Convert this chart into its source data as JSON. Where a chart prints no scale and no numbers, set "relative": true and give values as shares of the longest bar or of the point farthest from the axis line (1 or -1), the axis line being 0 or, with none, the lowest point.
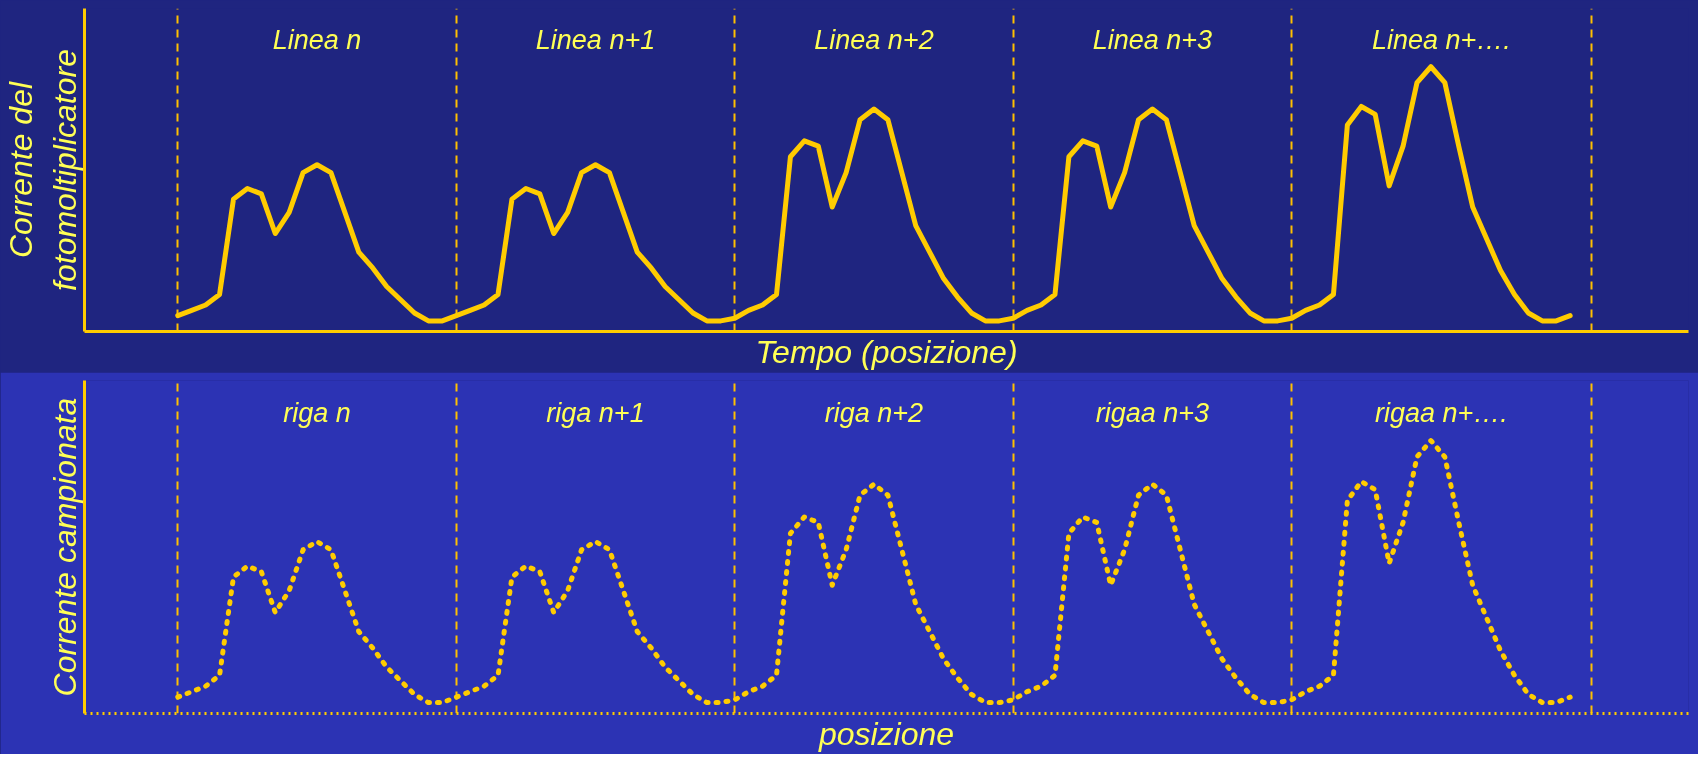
{
  "chart_data": [
    {
      "type": "line",
      "relative": true,
      "grid": "x",
      "ylabel": "Corrente del\nfotomoltiplicatore",
      "xlabel": "Tempo (posizione)",
      "annotations": [
        "Linea n",
        "Linea n+1",
        "Linea n+2",
        "Linea n+3",
        "Linea n+…."
      ],
      "categories": [
        null,
        null,
        null,
        null,
        null,
        null,
        null,
        null,
        null,
        null,
        null,
        null,
        null,
        null,
        null,
        null,
        null,
        null,
        null,
        null,
        null,
        null,
        null,
        null,
        null,
        null,
        null,
        null,
        null,
        null,
        null,
        null,
        null,
        null,
        null,
        null,
        null,
        null,
        null,
        null,
        null,
        null,
        null,
        null,
        null,
        null,
        null,
        null,
        null,
        null,
        null,
        null,
        null,
        null,
        null,
        null,
        null,
        null,
        null,
        null,
        null,
        null,
        null,
        null,
        null,
        null,
        null,
        null,
        null,
        null,
        null,
        null,
        null,
        null,
        null,
        null,
        null,
        null,
        null,
        null,
        null,
        null,
        null,
        null,
        null,
        null,
        null,
        null,
        null,
        null,
        null,
        null,
        null,
        null,
        null,
        null,
        null,
        null,
        null,
        null,
        null
      ],
      "series": [
        {
          "color": "#ffcc00",
          "line_style": "solid",
          "values": [
            0.06,
            0.08,
            0.1,
            0.14,
            0.5,
            0.54,
            0.52,
            0.37,
            0.45,
            0.6,
            0.63,
            0.6,
            0.45,
            0.3,
            0.24,
            0.17,
            0.12,
            0.07,
            0.04,
            0.04,
            0.06,
            0.08,
            0.1,
            0.14,
            0.5,
            0.54,
            0.52,
            0.37,
            0.45,
            0.6,
            0.63,
            0.6,
            0.45,
            0.3,
            0.24,
            0.17,
            0.12,
            0.07,
            0.04,
            0.04,
            0.05,
            0.08,
            0.1,
            0.14,
            0.66,
            0.72,
            0.7,
            0.47,
            0.6,
            0.8,
            0.84,
            0.8,
            0.6,
            0.4,
            0.3,
            0.2,
            0.13,
            0.07,
            0.04,
            0.04,
            0.05,
            0.08,
            0.1,
            0.14,
            0.66,
            0.72,
            0.7,
            0.47,
            0.6,
            0.8,
            0.84,
            0.8,
            0.6,
            0.4,
            0.3,
            0.2,
            0.13,
            0.07,
            0.04,
            0.04,
            0.05,
            0.08,
            0.1,
            0.14,
            0.78,
            0.85,
            0.82,
            0.55,
            0.7,
            0.94,
            1.0,
            0.94,
            0.7,
            0.47,
            0.35,
            0.23,
            0.14,
            0.07,
            0.04,
            0.04,
            0.06
          ]
        }
      ]
    },
    {
      "type": "line",
      "relative": true,
      "grid": "x",
      "ylabel": "Corrente campionata",
      "xlabel": "posizione",
      "annotations": [
        "riga n",
        "riga n+1",
        "riga n+2",
        "rigaa n+3",
        "rigaa n+…."
      ],
      "categories": [
        null,
        null,
        null,
        null,
        null,
        null,
        null,
        null,
        null,
        null,
        null,
        null,
        null,
        null,
        null,
        null,
        null,
        null,
        null,
        null,
        null,
        null,
        null,
        null,
        null,
        null,
        null,
        null,
        null,
        null,
        null,
        null,
        null,
        null,
        null,
        null,
        null,
        null,
        null,
        null,
        null,
        null,
        null,
        null,
        null,
        null,
        null,
        null,
        null,
        null,
        null,
        null,
        null,
        null,
        null,
        null,
        null,
        null,
        null,
        null,
        null,
        null,
        null,
        null,
        null,
        null,
        null,
        null,
        null,
        null,
        null,
        null,
        null,
        null,
        null,
        null,
        null,
        null,
        null,
        null,
        null,
        null,
        null,
        null,
        null,
        null,
        null,
        null,
        null,
        null,
        null,
        null,
        null,
        null,
        null,
        null,
        null,
        null,
        null,
        null,
        null
      ],
      "series": [
        {
          "color": "#ffcc00",
          "line_style": "dotted",
          "values": [
            0.06,
            0.08,
            0.1,
            0.14,
            0.5,
            0.54,
            0.52,
            0.37,
            0.45,
            0.6,
            0.63,
            0.6,
            0.45,
            0.3,
            0.24,
            0.17,
            0.12,
            0.07,
            0.04,
            0.04,
            0.06,
            0.08,
            0.1,
            0.14,
            0.5,
            0.54,
            0.52,
            0.37,
            0.45,
            0.6,
            0.63,
            0.6,
            0.45,
            0.3,
            0.24,
            0.17,
            0.12,
            0.07,
            0.04,
            0.04,
            0.05,
            0.08,
            0.1,
            0.14,
            0.66,
            0.72,
            0.7,
            0.47,
            0.6,
            0.8,
            0.84,
            0.8,
            0.6,
            0.4,
            0.3,
            0.2,
            0.13,
            0.07,
            0.04,
            0.04,
            0.05,
            0.08,
            0.1,
            0.14,
            0.66,
            0.72,
            0.7,
            0.47,
            0.6,
            0.8,
            0.84,
            0.8,
            0.6,
            0.4,
            0.3,
            0.2,
            0.13,
            0.07,
            0.04,
            0.04,
            0.05,
            0.08,
            0.1,
            0.14,
            0.78,
            0.85,
            0.82,
            0.55,
            0.7,
            0.94,
            1.0,
            0.94,
            0.7,
            0.47,
            0.35,
            0.23,
            0.14,
            0.07,
            0.04,
            0.04,
            0.06
          ]
        }
      ]
    }
  ]
}
